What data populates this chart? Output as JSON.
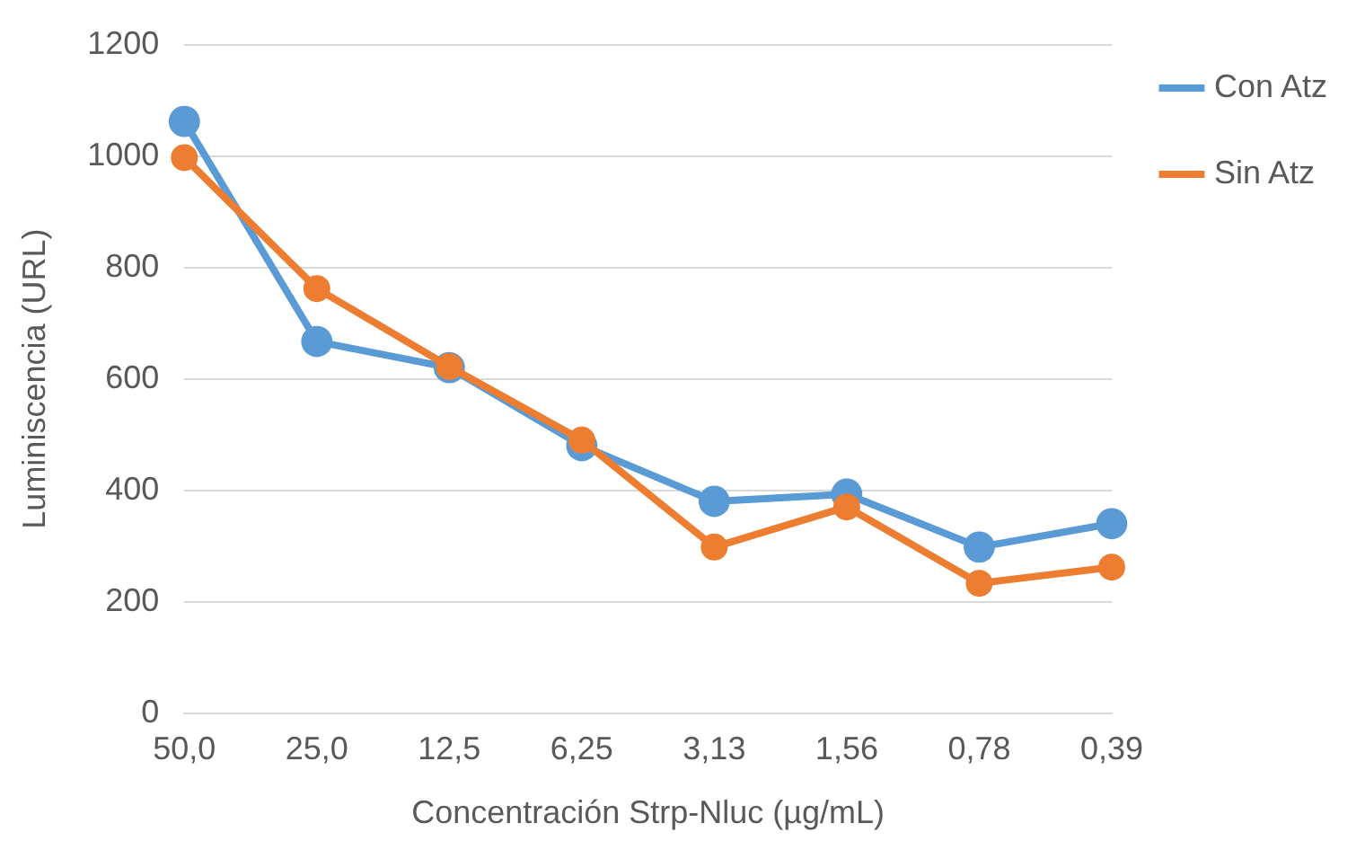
{
  "chart_data": {
    "type": "line",
    "xlabel": "Concentración Strp-Nluc (µg/mL)",
    "ylabel": "Luminiscencia (URL)",
    "categories": [
      "50,0",
      "25,0",
      "12,5",
      "6,25",
      "3,13",
      "1,56",
      "0,78",
      "0,39"
    ],
    "series": [
      {
        "name": "Con Atz",
        "color": "#5b9bd5",
        "values": [
          1062,
          667,
          620,
          480,
          380,
          393,
          298,
          340
        ]
      },
      {
        "name": "Sin Atz",
        "color": "#ed7d31",
        "values": [
          997,
          762,
          622,
          490,
          298,
          370,
          233,
          262
        ]
      }
    ],
    "ylim": [
      0,
      1200
    ],
    "yticks": [
      0,
      200,
      400,
      600,
      800,
      1000,
      1200
    ],
    "grid": "y",
    "legend": "right",
    "marker": "circle",
    "line_style": "solid"
  }
}
